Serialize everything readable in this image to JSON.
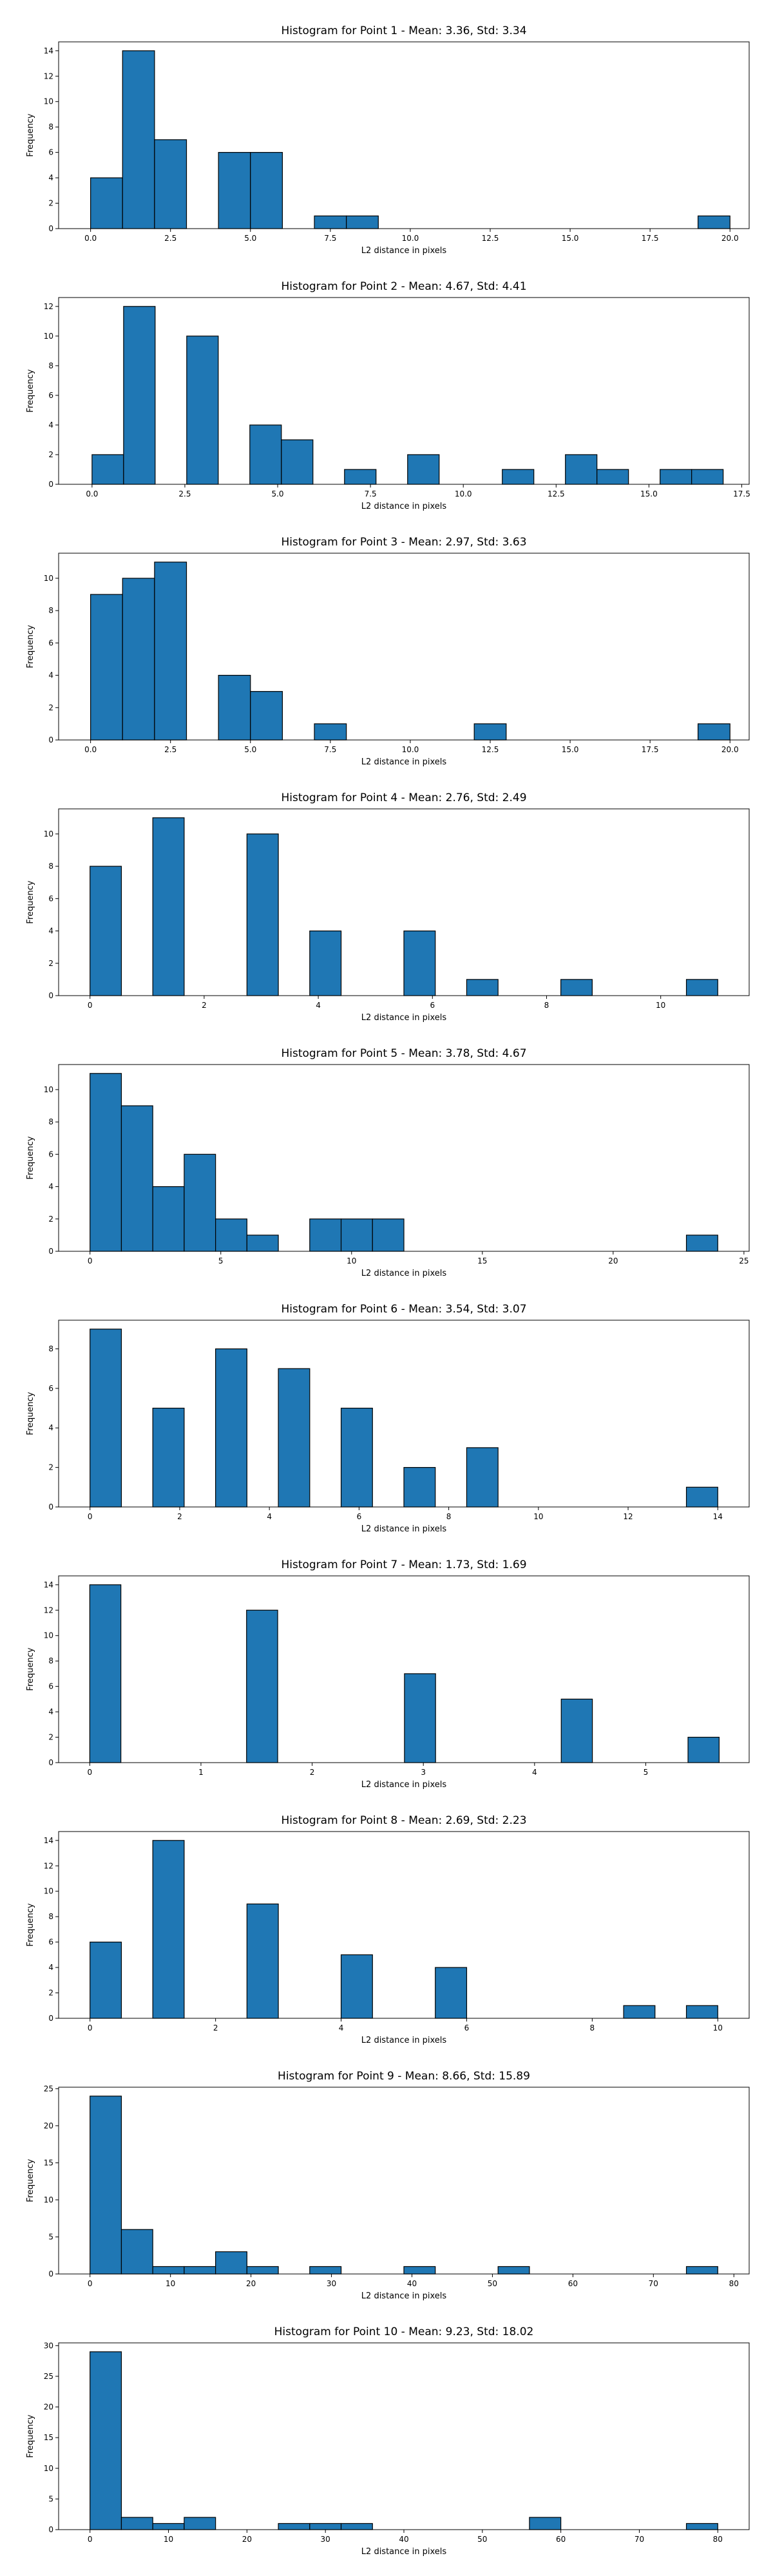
{
  "chart_data": [
    {
      "type": "bar",
      "title": "Histogram for Point 1 - Mean: 3.36, Std: 3.34",
      "xlabel": "L2 distance in pixels",
      "ylabel": "Frequency",
      "xlim": [
        -1.0,
        20.6
      ],
      "ylim": [
        0,
        14.7
      ],
      "xticks": [
        0.0,
        2.5,
        5.0,
        7.5,
        10.0,
        12.5,
        15.0,
        17.5,
        20.0
      ],
      "xtick_labels": [
        "0.0",
        "2.5",
        "5.0",
        "7.5",
        "10.0",
        "12.5",
        "15.0",
        "17.5",
        "20.0"
      ],
      "yticks": [
        0,
        2,
        4,
        6,
        8,
        10,
        12,
        14
      ],
      "bar_color": "#1f77b4",
      "edge_color": "#000000",
      "bins": [
        {
          "x0": 0.0,
          "x1": 1.0,
          "count": 4
        },
        {
          "x0": 1.0,
          "x1": 2.0,
          "count": 14
        },
        {
          "x0": 2.0,
          "x1": 3.0,
          "count": 7
        },
        {
          "x0": 4.0,
          "x1": 5.0,
          "count": 6
        },
        {
          "x0": 5.0,
          "x1": 6.0,
          "count": 6
        },
        {
          "x0": 7.0,
          "x1": 8.0,
          "count": 1
        },
        {
          "x0": 8.0,
          "x1": 9.0,
          "count": 1
        },
        {
          "x0": 19.0,
          "x1": 20.0,
          "count": 1
        }
      ]
    },
    {
      "type": "bar",
      "title": "Histogram for Point 2 - Mean: 4.67, Std: 4.41",
      "xlabel": "L2 distance in pixels",
      "ylabel": "Frequency",
      "xlim": [
        -0.9,
        17.7
      ],
      "ylim": [
        0,
        12.6
      ],
      "xticks": [
        0.0,
        2.5,
        5.0,
        7.5,
        10.0,
        12.5,
        15.0,
        17.5
      ],
      "xtick_labels": [
        "0.0",
        "2.5",
        "5.0",
        "7.5",
        "10.0",
        "12.5",
        "15.0",
        "17.5"
      ],
      "yticks": [
        0,
        2,
        4,
        6,
        8,
        10,
        12
      ],
      "bar_color": "#1f77b4",
      "edge_color": "#000000",
      "bins": [
        {
          "x0": 0.0,
          "x1": 0.85,
          "count": 2
        },
        {
          "x0": 0.85,
          "x1": 1.7,
          "count": 12
        },
        {
          "x0": 2.55,
          "x1": 3.4,
          "count": 10
        },
        {
          "x0": 4.25,
          "x1": 5.1,
          "count": 4
        },
        {
          "x0": 5.1,
          "x1": 5.95,
          "count": 3
        },
        {
          "x0": 6.8,
          "x1": 7.65,
          "count": 1
        },
        {
          "x0": 8.5,
          "x1": 9.35,
          "count": 2
        },
        {
          "x0": 11.05,
          "x1": 11.9,
          "count": 1
        },
        {
          "x0": 12.75,
          "x1": 13.6,
          "count": 2
        },
        {
          "x0": 13.6,
          "x1": 14.45,
          "count": 1
        },
        {
          "x0": 15.3,
          "x1": 16.15,
          "count": 1
        },
        {
          "x0": 16.15,
          "x1": 17.0,
          "count": 1
        }
      ]
    },
    {
      "type": "bar",
      "title": "Histogram for Point 3 - Mean: 2.97, Std: 3.63",
      "xlabel": "L2 distance in pixels",
      "ylabel": "Frequency",
      "xlim": [
        -1.0,
        20.6
      ],
      "ylim": [
        0,
        11.55
      ],
      "xticks": [
        0.0,
        2.5,
        5.0,
        7.5,
        10.0,
        12.5,
        15.0,
        17.5,
        20.0
      ],
      "xtick_labels": [
        "0.0",
        "2.5",
        "5.0",
        "7.5",
        "10.0",
        "12.5",
        "15.0",
        "17.5",
        "20.0"
      ],
      "yticks": [
        0,
        2,
        4,
        6,
        8,
        10
      ],
      "bar_color": "#1f77b4",
      "edge_color": "#000000",
      "bins": [
        {
          "x0": 0.0,
          "x1": 1.0,
          "count": 9
        },
        {
          "x0": 1.0,
          "x1": 2.0,
          "count": 10
        },
        {
          "x0": 2.0,
          "x1": 3.0,
          "count": 11
        },
        {
          "x0": 4.0,
          "x1": 5.0,
          "count": 4
        },
        {
          "x0": 5.0,
          "x1": 6.0,
          "count": 3
        },
        {
          "x0": 7.0,
          "x1": 8.0,
          "count": 1
        },
        {
          "x0": 12.0,
          "x1": 13.0,
          "count": 1
        },
        {
          "x0": 19.0,
          "x1": 20.0,
          "count": 1
        }
      ]
    },
    {
      "type": "bar",
      "title": "Histogram for Point 4 - Mean: 2.76, Std: 2.49",
      "xlabel": "L2 distance in pixels",
      "ylabel": "Frequency",
      "xlim": [
        -0.55,
        11.55
      ],
      "ylim": [
        0,
        11.55
      ],
      "xticks": [
        0,
        2,
        4,
        6,
        8,
        10
      ],
      "xtick_labels": [
        "0",
        "2",
        "4",
        "6",
        "8",
        "10"
      ],
      "yticks": [
        0,
        2,
        4,
        6,
        8,
        10
      ],
      "bar_color": "#1f77b4",
      "edge_color": "#000000",
      "bins": [
        {
          "x0": 0.0,
          "x1": 0.55,
          "count": 8
        },
        {
          "x0": 1.1,
          "x1": 1.65,
          "count": 11
        },
        {
          "x0": 2.75,
          "x1": 3.3,
          "count": 10
        },
        {
          "x0": 3.85,
          "x1": 4.4,
          "count": 4
        },
        {
          "x0": 5.5,
          "x1": 6.05,
          "count": 4
        },
        {
          "x0": 6.6,
          "x1": 7.15,
          "count": 1
        },
        {
          "x0": 8.25,
          "x1": 8.8,
          "count": 1
        },
        {
          "x0": 10.45,
          "x1": 11.0,
          "count": 1
        }
      ]
    },
    {
      "type": "bar",
      "title": "Histogram for Point 5 - Mean: 3.78, Std: 4.67",
      "xlabel": "L2 distance in pixels",
      "ylabel": "Frequency",
      "xlim": [
        -1.2,
        25.2
      ],
      "ylim": [
        0,
        11.55
      ],
      "xticks": [
        0,
        5,
        10,
        15,
        20,
        25
      ],
      "xtick_labels": [
        "0",
        "5",
        "10",
        "15",
        "20",
        "25"
      ],
      "yticks": [
        0,
        2,
        4,
        6,
        8,
        10
      ],
      "bar_color": "#1f77b4",
      "edge_color": "#000000",
      "bins": [
        {
          "x0": 0.0,
          "x1": 1.2,
          "count": 11
        },
        {
          "x0": 1.2,
          "x1": 2.4,
          "count": 9
        },
        {
          "x0": 2.4,
          "x1": 3.6,
          "count": 4
        },
        {
          "x0": 3.6,
          "x1": 4.8,
          "count": 6
        },
        {
          "x0": 4.8,
          "x1": 6.0,
          "count": 2
        },
        {
          "x0": 6.0,
          "x1": 7.2,
          "count": 1
        },
        {
          "x0": 8.4,
          "x1": 9.6,
          "count": 2
        },
        {
          "x0": 9.6,
          "x1": 10.8,
          "count": 2
        },
        {
          "x0": 10.8,
          "x1": 12.0,
          "count": 2
        },
        {
          "x0": 22.8,
          "x1": 24.0,
          "count": 1
        }
      ]
    },
    {
      "type": "bar",
      "title": "Histogram for Point 6 - Mean: 3.54, Std: 3.07",
      "xlabel": "L2 distance in pixels",
      "ylabel": "Frequency",
      "xlim": [
        -0.7,
        14.7
      ],
      "ylim": [
        0,
        9.45
      ],
      "xticks": [
        0,
        2,
        4,
        6,
        8,
        10,
        12,
        14
      ],
      "xtick_labels": [
        "0",
        "2",
        "4",
        "6",
        "8",
        "10",
        "12",
        "14"
      ],
      "yticks": [
        0,
        2,
        4,
        6,
        8
      ],
      "bar_color": "#1f77b4",
      "edge_color": "#000000",
      "bins": [
        {
          "x0": 0.0,
          "x1": 0.7,
          "count": 9
        },
        {
          "x0": 1.4,
          "x1": 2.1,
          "count": 5
        },
        {
          "x0": 2.8,
          "x1": 3.5,
          "count": 8
        },
        {
          "x0": 4.2,
          "x1": 4.9,
          "count": 7
        },
        {
          "x0": 5.6,
          "x1": 6.3,
          "count": 5
        },
        {
          "x0": 7.0,
          "x1": 7.7,
          "count": 2
        },
        {
          "x0": 8.4,
          "x1": 9.1,
          "count": 3
        },
        {
          "x0": 13.3,
          "x1": 14.0,
          "count": 1
        }
      ]
    },
    {
      "type": "bar",
      "title": "Histogram for Point 7 - Mean: 1.73, Std: 1.69",
      "xlabel": "L2 distance in pixels",
      "ylabel": "Frequency",
      "xlim": [
        -0.28,
        5.93
      ],
      "ylim": [
        0,
        14.7
      ],
      "xticks": [
        0,
        1,
        2,
        3,
        4,
        5
      ],
      "xtick_labels": [
        "0",
        "1",
        "2",
        "3",
        "4",
        "5"
      ],
      "yticks": [
        0,
        2,
        4,
        6,
        8,
        10,
        12,
        14
      ],
      "bar_color": "#1f77b4",
      "edge_color": "#000000",
      "bins": [
        {
          "x0": 0.0,
          "x1": 0.28,
          "count": 14
        },
        {
          "x0": 1.41,
          "x1": 1.69,
          "count": 12
        },
        {
          "x0": 2.83,
          "x1": 3.11,
          "count": 7
        },
        {
          "x0": 4.24,
          "x1": 4.52,
          "count": 5
        },
        {
          "x0": 5.38,
          "x1": 5.66,
          "count": 2
        }
      ]
    },
    {
      "type": "bar",
      "title": "Histogram for Point 8 - Mean: 2.69, Std: 2.23",
      "xlabel": "L2 distance in pixels",
      "ylabel": "Frequency",
      "xlim": [
        -0.5,
        10.5
      ],
      "ylim": [
        0,
        14.7
      ],
      "xticks": [
        0,
        2,
        4,
        6,
        8,
        10
      ],
      "xtick_labels": [
        "0",
        "2",
        "4",
        "6",
        "8",
        "10"
      ],
      "yticks": [
        0,
        2,
        4,
        6,
        8,
        10,
        12,
        14
      ],
      "bar_color": "#1f77b4",
      "edge_color": "#000000",
      "bins": [
        {
          "x0": 0.0,
          "x1": 0.5,
          "count": 6
        },
        {
          "x0": 1.0,
          "x1": 1.5,
          "count": 14
        },
        {
          "x0": 2.5,
          "x1": 3.0,
          "count": 9
        },
        {
          "x0": 4.0,
          "x1": 4.5,
          "count": 5
        },
        {
          "x0": 5.5,
          "x1": 6.0,
          "count": 4
        },
        {
          "x0": 8.5,
          "x1": 9.0,
          "count": 1
        },
        {
          "x0": 9.5,
          "x1": 10.0,
          "count": 1
        }
      ]
    },
    {
      "type": "bar",
      "title": "Histogram for Point 9 - Mean: 8.66, Std: 15.89",
      "xlabel": "L2 distance in pixels",
      "ylabel": "Frequency",
      "xlim": [
        -3.9,
        81.9
      ],
      "ylim": [
        0,
        25.2
      ],
      "xticks": [
        0,
        10,
        20,
        30,
        40,
        50,
        60,
        70,
        80
      ],
      "xtick_labels": [
        "0",
        "10",
        "20",
        "30",
        "40",
        "50",
        "60",
        "70",
        "80"
      ],
      "yticks": [
        0,
        5,
        10,
        15,
        20,
        25
      ],
      "bar_color": "#1f77b4",
      "edge_color": "#000000",
      "bins": [
        {
          "x0": 0.0,
          "x1": 3.9,
          "count": 24
        },
        {
          "x0": 3.9,
          "x1": 7.8,
          "count": 6
        },
        {
          "x0": 7.8,
          "x1": 11.7,
          "count": 1
        },
        {
          "x0": 11.7,
          "x1": 15.6,
          "count": 1
        },
        {
          "x0": 15.6,
          "x1": 19.5,
          "count": 3
        },
        {
          "x0": 19.5,
          "x1": 23.4,
          "count": 1
        },
        {
          "x0": 27.3,
          "x1": 31.2,
          "count": 1
        },
        {
          "x0": 39.0,
          "x1": 42.9,
          "count": 1
        },
        {
          "x0": 50.7,
          "x1": 54.6,
          "count": 1
        },
        {
          "x0": 74.1,
          "x1": 78.0,
          "count": 1
        }
      ]
    },
    {
      "type": "bar",
      "title": "Histogram for Point 10 - Mean: 9.23, Std: 18.02",
      "xlabel": "L2 distance in pixels",
      "ylabel": "Frequency",
      "xlim": [
        -4.0,
        84.0
      ],
      "ylim": [
        0,
        30.45
      ],
      "xticks": [
        0,
        10,
        20,
        30,
        40,
        50,
        60,
        70,
        80
      ],
      "xtick_labels": [
        "0",
        "10",
        "20",
        "30",
        "40",
        "50",
        "60",
        "70",
        "80"
      ],
      "yticks": [
        0,
        5,
        10,
        15,
        20,
        25,
        30
      ],
      "bar_color": "#1f77b4",
      "edge_color": "#000000",
      "bins": [
        {
          "x0": 0.0,
          "x1": 4.0,
          "count": 29
        },
        {
          "x0": 4.0,
          "x1": 8.0,
          "count": 2
        },
        {
          "x0": 8.0,
          "x1": 12.0,
          "count": 1
        },
        {
          "x0": 12.0,
          "x1": 16.0,
          "count": 2
        },
        {
          "x0": 24.0,
          "x1": 28.0,
          "count": 1
        },
        {
          "x0": 28.0,
          "x1": 32.0,
          "count": 1
        },
        {
          "x0": 32.0,
          "x1": 36.0,
          "count": 1
        },
        {
          "x0": 56.0,
          "x1": 60.0,
          "count": 2
        },
        {
          "x0": 76.0,
          "x1": 80.0,
          "count": 1
        }
      ]
    }
  ]
}
